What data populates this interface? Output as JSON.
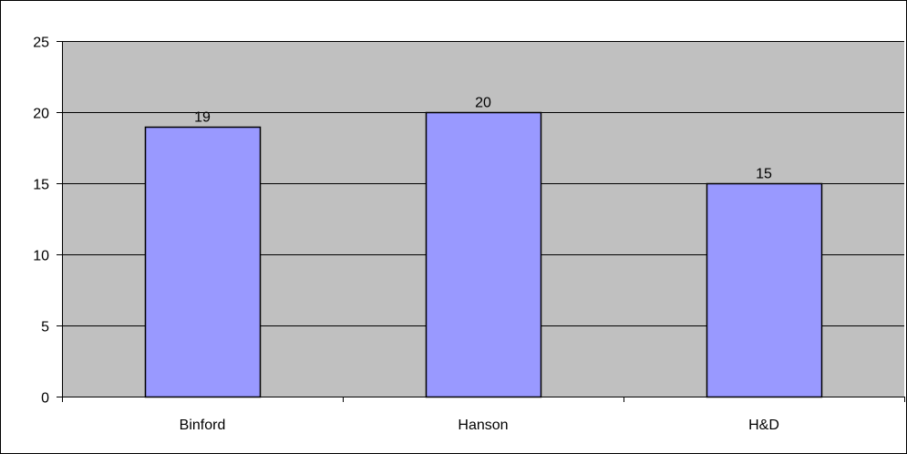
{
  "chart_data": {
    "type": "bar",
    "title": "",
    "xlabel": "",
    "ylabel": "",
    "categories": [
      "Binford",
      "Hanson",
      "H&D"
    ],
    "values": [
      19,
      20,
      15
    ],
    "data_labels": [
      "19",
      "20",
      "15"
    ],
    "ylim": [
      0,
      25
    ],
    "yticks": [
      0,
      5,
      10,
      15,
      20,
      25
    ],
    "grid": true,
    "legend": "none",
    "colors": {
      "plot_background": "#c0c0c0",
      "bar_fill": "#9999ff",
      "bar_stroke": "#000000",
      "gridline": "#000000"
    }
  }
}
